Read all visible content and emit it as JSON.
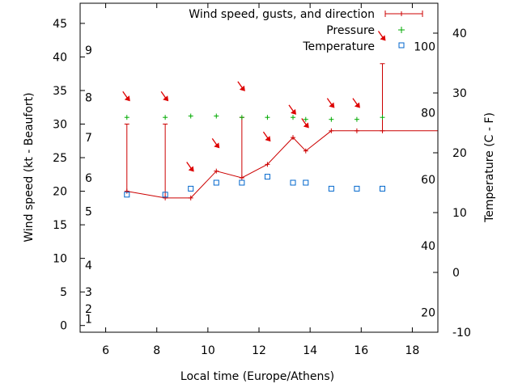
{
  "chart_data": {
    "type": "line",
    "xlabel": "Local time (Europe/Athens)",
    "ylabel_left": "Wind speed (kt - Beaufort)",
    "ylabel_right": "Temperature (C - F)",
    "xlim": [
      5,
      19
    ],
    "ylim_left": [
      -1,
      48
    ],
    "ylim_right": [
      -10,
      45
    ],
    "x_ticks": [
      6,
      8,
      10,
      12,
      14,
      16,
      18
    ],
    "y_ticks_left": [
      0,
      5,
      10,
      15,
      20,
      25,
      30,
      35,
      40,
      45
    ],
    "y_ticks_celsius": [
      -10,
      0,
      10,
      20,
      30,
      40
    ],
    "fahrenheit_labels": [
      {
        "value": 20,
        "label": "20"
      },
      {
        "value": 40,
        "label": "40"
      },
      {
        "value": 60,
        "label": "60"
      },
      {
        "value": 80,
        "label": "80"
      },
      {
        "value": 100,
        "label": "100"
      }
    ],
    "beaufort_labels": [
      {
        "value": 1,
        "label": "1"
      },
      {
        "value": 2.5,
        "label": "2"
      },
      {
        "value": 5,
        "label": "3"
      },
      {
        "value": 9,
        "label": "4"
      },
      {
        "value": 17,
        "label": "5"
      },
      {
        "value": 22,
        "label": "6"
      },
      {
        "value": 28,
        "label": "7"
      },
      {
        "value": 34,
        "label": "8"
      },
      {
        "value": 41,
        "label": "9"
      }
    ],
    "legend_position": "top-right",
    "series": [
      {
        "name": "Wind speed, gusts, and direction",
        "color": "#cc0000",
        "x": [
          6.83,
          8.33,
          9.33,
          10.33,
          11.33,
          12.33,
          13.33,
          13.83,
          14.83,
          15.83,
          16.83
        ],
        "values": [
          20,
          19,
          19,
          23,
          22,
          24,
          28,
          26,
          29,
          29,
          29
        ],
        "gusts": [
          30,
          30,
          null,
          null,
          31,
          null,
          null,
          null,
          null,
          null,
          39
        ],
        "direction_arrow_y": [
          34,
          34,
          23.5,
          27,
          35.5,
          28,
          32,
          30,
          33,
          33,
          43
        ],
        "extend_to_x": 19
      },
      {
        "name": "Pressure",
        "color": "#00aa00",
        "x": [
          6.83,
          8.33,
          9.33,
          10.33,
          11.33,
          12.33,
          13.33,
          13.83,
          14.83,
          15.83,
          16.83
        ],
        "values": [
          31,
          31,
          31.2,
          31.2,
          31,
          31,
          31,
          30.7,
          30.7,
          30.7,
          31
        ]
      },
      {
        "name": "Temperature",
        "color": "#0066cc",
        "axis": "right",
        "x": [
          6.83,
          8.33,
          9.33,
          10.33,
          11.33,
          12.33,
          13.33,
          13.83,
          14.83,
          15.83,
          16.83
        ],
        "values": [
          13,
          13,
          14,
          15,
          15,
          16,
          15,
          15,
          14,
          14,
          14
        ]
      }
    ]
  }
}
